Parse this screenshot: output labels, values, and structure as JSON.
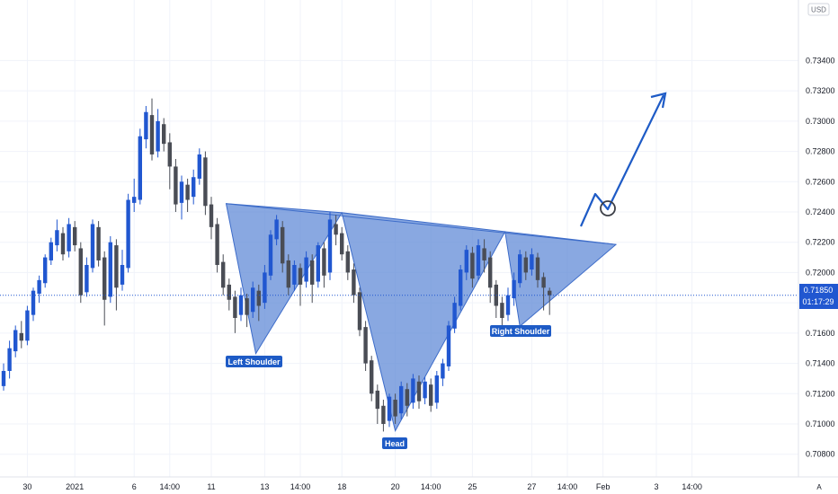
{
  "chart_data": {
    "type": "candlestick",
    "currency": "USD",
    "y_axis": {
      "ylim": [
        0.7065,
        0.738
      ],
      "ticks": [
        "0.73400",
        "0.73200",
        "0.73000",
        "0.72800",
        "0.72600",
        "0.72400",
        "0.72200",
        "0.72000",
        "0.71800",
        "0.71600",
        "0.71400",
        "0.71200",
        "0.71000",
        "0.70800"
      ]
    },
    "x_axis": {
      "ticks": [
        {
          "label": "30",
          "i": 4
        },
        {
          "label": "2021",
          "i": 12
        },
        {
          "label": "6",
          "i": 22
        },
        {
          "label": "14:00",
          "i": 28
        },
        {
          "label": "11",
          "i": 35
        },
        {
          "label": "13",
          "i": 44
        },
        {
          "label": "14:00",
          "i": 50
        },
        {
          "label": "18",
          "i": 57
        },
        {
          "label": "20",
          "i": 66
        },
        {
          "label": "14:00",
          "i": 72
        },
        {
          "label": "25",
          "i": 79
        },
        {
          "label": "27",
          "i": 89
        },
        {
          "label": "14:00",
          "i": 95
        },
        {
          "label": "Feb",
          "i": 101
        },
        {
          "label": "3",
          "i": 110
        },
        {
          "label": "14:00",
          "i": 116
        }
      ]
    },
    "current_price": {
      "price": 0.7185,
      "label": "0.71850",
      "countdown": "01:17:29"
    },
    "candles": [
      [
        0.7125,
        0.7135,
        0.7122,
        0.714
      ],
      [
        0.7135,
        0.715,
        0.713,
        0.7155
      ],
      [
        0.7148,
        0.7162,
        0.7144,
        0.7165
      ],
      [
        0.716,
        0.7155,
        0.715,
        0.7168
      ],
      [
        0.7155,
        0.7175,
        0.7152,
        0.7178
      ],
      [
        0.7172,
        0.7188,
        0.7168,
        0.719
      ],
      [
        0.7186,
        0.7195,
        0.718,
        0.7198
      ],
      [
        0.7193,
        0.721,
        0.719,
        0.7212
      ],
      [
        0.7208,
        0.722,
        0.7205,
        0.7223
      ],
      [
        0.7218,
        0.7228,
        0.7214,
        0.7235
      ],
      [
        0.7226,
        0.7212,
        0.7208,
        0.723
      ],
      [
        0.7214,
        0.7232,
        0.721,
        0.7236
      ],
      [
        0.723,
        0.7218,
        0.7214,
        0.7234
      ],
      [
        0.7216,
        0.7185,
        0.718,
        0.722
      ],
      [
        0.7187,
        0.7205,
        0.7184,
        0.721
      ],
      [
        0.7203,
        0.7232,
        0.72,
        0.7235
      ],
      [
        0.723,
        0.7208,
        0.7204,
        0.7234
      ],
      [
        0.721,
        0.7182,
        0.7165,
        0.7214
      ],
      [
        0.7184,
        0.722,
        0.718,
        0.7224
      ],
      [
        0.7218,
        0.719,
        0.7175,
        0.7222
      ],
      [
        0.7192,
        0.7205,
        0.7188,
        0.7215
      ],
      [
        0.7203,
        0.7248,
        0.72,
        0.7252
      ],
      [
        0.7246,
        0.725,
        0.724,
        0.7262
      ],
      [
        0.7248,
        0.729,
        0.7245,
        0.7295
      ],
      [
        0.7288,
        0.7306,
        0.7282,
        0.731
      ],
      [
        0.7304,
        0.7278,
        0.7274,
        0.7315
      ],
      [
        0.728,
        0.73,
        0.7276,
        0.7308
      ],
      [
        0.7298,
        0.7285,
        0.728,
        0.7302
      ],
      [
        0.7286,
        0.727,
        0.7255,
        0.7292
      ],
      [
        0.727,
        0.7245,
        0.724,
        0.7275
      ],
      [
        0.7246,
        0.726,
        0.7235,
        0.7264
      ],
      [
        0.7258,
        0.7248,
        0.724,
        0.7262
      ],
      [
        0.725,
        0.7263,
        0.7245,
        0.7268
      ],
      [
        0.7262,
        0.7278,
        0.7258,
        0.7282
      ],
      [
        0.7276,
        0.7244,
        0.7238,
        0.728
      ],
      [
        0.7245,
        0.723,
        0.7222,
        0.725
      ],
      [
        0.7232,
        0.7205,
        0.72,
        0.7236
      ],
      [
        0.7207,
        0.719,
        0.7185,
        0.7212
      ],
      [
        0.7192,
        0.7182,
        0.7175,
        0.7196
      ],
      [
        0.7184,
        0.717,
        0.716,
        0.7188
      ],
      [
        0.7172,
        0.7185,
        0.7168,
        0.719
      ],
      [
        0.7183,
        0.7172,
        0.7164,
        0.7186
      ],
      [
        0.7174,
        0.719,
        0.717,
        0.7194
      ],
      [
        0.7188,
        0.7178,
        0.7168,
        0.7192
      ],
      [
        0.718,
        0.72,
        0.7176,
        0.7205
      ],
      [
        0.7198,
        0.7225,
        0.7195,
        0.7228
      ],
      [
        0.7222,
        0.7235,
        0.7218,
        0.7238
      ],
      [
        0.723,
        0.7206,
        0.72,
        0.7234
      ],
      [
        0.7208,
        0.719,
        0.7185,
        0.7212
      ],
      [
        0.7192,
        0.7205,
        0.7188,
        0.7208
      ],
      [
        0.7203,
        0.7192,
        0.7178,
        0.7206
      ],
      [
        0.7194,
        0.721,
        0.719,
        0.7214
      ],
      [
        0.7208,
        0.7192,
        0.718,
        0.7212
      ],
      [
        0.7194,
        0.7218,
        0.719,
        0.722
      ],
      [
        0.7216,
        0.7198,
        0.719,
        0.722
      ],
      [
        0.72,
        0.7235,
        0.7195,
        0.724
      ],
      [
        0.7232,
        0.7225,
        0.7218,
        0.7238
      ],
      [
        0.7226,
        0.7212,
        0.7208,
        0.723
      ],
      [
        0.7214,
        0.72,
        0.7195,
        0.7218
      ],
      [
        0.7202,
        0.7185,
        0.718,
        0.7206
      ],
      [
        0.7187,
        0.7162,
        0.7158,
        0.719
      ],
      [
        0.7164,
        0.714,
        0.7135,
        0.7168
      ],
      [
        0.7142,
        0.712,
        0.7115,
        0.7145
      ],
      [
        0.7122,
        0.711,
        0.71,
        0.7126
      ],
      [
        0.7112,
        0.71,
        0.7095,
        0.7116
      ],
      [
        0.7102,
        0.7118,
        0.7098,
        0.712
      ],
      [
        0.7116,
        0.7105,
        0.71,
        0.712
      ],
      [
        0.7107,
        0.7125,
        0.7103,
        0.7128
      ],
      [
        0.7123,
        0.7112,
        0.7105,
        0.7127
      ],
      [
        0.7114,
        0.713,
        0.711,
        0.7133
      ],
      [
        0.7128,
        0.7115,
        0.711,
        0.7132
      ],
      [
        0.7117,
        0.7128,
        0.7113,
        0.7131
      ],
      [
        0.7126,
        0.7112,
        0.7108,
        0.713
      ],
      [
        0.7114,
        0.7132,
        0.711,
        0.7135
      ],
      [
        0.713,
        0.714,
        0.7125,
        0.7143
      ],
      [
        0.7138,
        0.7165,
        0.7135,
        0.7168
      ],
      [
        0.7163,
        0.718,
        0.716,
        0.7184
      ],
      [
        0.7178,
        0.7202,
        0.7175,
        0.7205
      ],
      [
        0.72,
        0.7215,
        0.7195,
        0.7218
      ],
      [
        0.7213,
        0.7196,
        0.719,
        0.7217
      ],
      [
        0.7198,
        0.7218,
        0.7195,
        0.7222
      ],
      [
        0.7216,
        0.7208,
        0.72,
        0.7222
      ],
      [
        0.721,
        0.719,
        0.718,
        0.7214
      ],
      [
        0.7192,
        0.7178,
        0.717,
        0.7195
      ],
      [
        0.718,
        0.717,
        0.7165,
        0.7184
      ],
      [
        0.7172,
        0.7185,
        0.7168,
        0.719
      ],
      [
        0.7183,
        0.7195,
        0.7178,
        0.72
      ],
      [
        0.7193,
        0.7212,
        0.719,
        0.7215
      ],
      [
        0.721,
        0.72,
        0.7195,
        0.7214
      ],
      [
        0.7202,
        0.7212,
        0.7198,
        0.7216
      ],
      [
        0.721,
        0.7195,
        0.719,
        0.7213
      ],
      [
        0.7197,
        0.719,
        0.7175,
        0.72
      ],
      [
        0.7188,
        0.7185,
        0.7172,
        0.719
      ]
    ],
    "annotations": {
      "left_shoulder": "Left Shoulder",
      "head": "Head",
      "right_shoulder": "Right Shoulder"
    },
    "pattern": "inverse head and shoulders",
    "colors": {
      "up": "#2157d0",
      "down": "#4a4d55",
      "fill": "#5b86d6",
      "arrow": "#1e5bc6",
      "badge": "#1e5bc6",
      "price_line": "#2157d0"
    }
  }
}
